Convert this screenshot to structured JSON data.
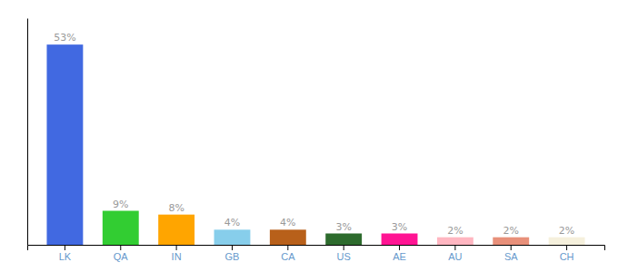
{
  "chart_data": {
    "type": "bar",
    "categories": [
      "LK",
      "QA",
      "IN",
      "GB",
      "CA",
      "US",
      "AE",
      "AU",
      "SA",
      "CH"
    ],
    "values": [
      53,
      9,
      8,
      4,
      4,
      3,
      3,
      2,
      2,
      2
    ],
    "value_labels": [
      "53%",
      "9%",
      "8%",
      "4%",
      "4%",
      "3%",
      "3%",
      "2%",
      "2%",
      "2%"
    ],
    "colors": [
      "#4169e1",
      "#32cd32",
      "#ffa500",
      "#87ceeb",
      "#b8601a",
      "#2d6b2d",
      "#ff1493",
      "#ffb6c1",
      "#e8907a",
      "#f5f0dc"
    ],
    "ylim": [
      0,
      60
    ],
    "data_labels": true,
    "tick_labels": "x",
    "grid": false
  }
}
